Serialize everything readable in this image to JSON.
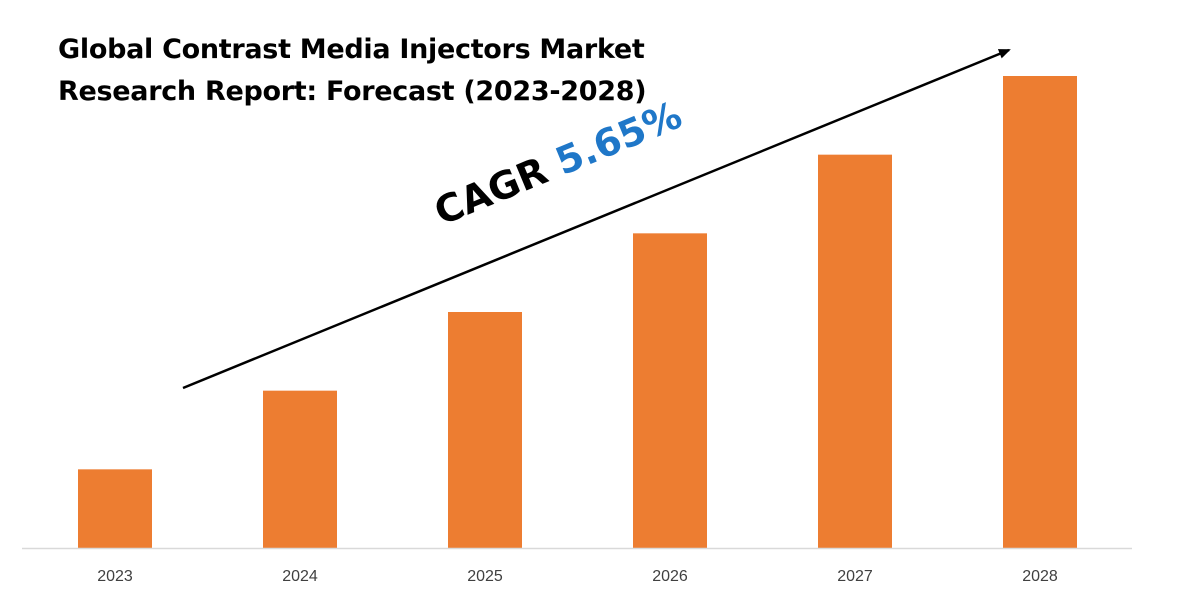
{
  "title": {
    "line1": "Global Contrast Media Injectors Market",
    "line2": "Research Report: Forecast (2023-2028)"
  },
  "annotation": {
    "cagr_label": "CAGR ",
    "cagr_value": "5.65%"
  },
  "colors": {
    "bar": "#ed7d31",
    "arrow": "#000000",
    "cagr_value": "#1f77c8",
    "axis": "#d9d9d9",
    "tick_text": "#404040"
  },
  "chart_data": {
    "type": "bar",
    "title": "Global Contrast Media Injectors Market Research Report: Forecast (2023-2028)",
    "categories": [
      "2023",
      "2024",
      "2025",
      "2026",
      "2027",
      "2028"
    ],
    "values": [
      1.0,
      2.0,
      3.0,
      4.0,
      5.0,
      6.0
    ],
    "ylim": [
      0,
      6
    ],
    "xlabel": "",
    "ylabel": "",
    "grid": false,
    "y_axis_visible": false,
    "annotation": "CAGR 5.65%",
    "trend_arrow": true
  }
}
